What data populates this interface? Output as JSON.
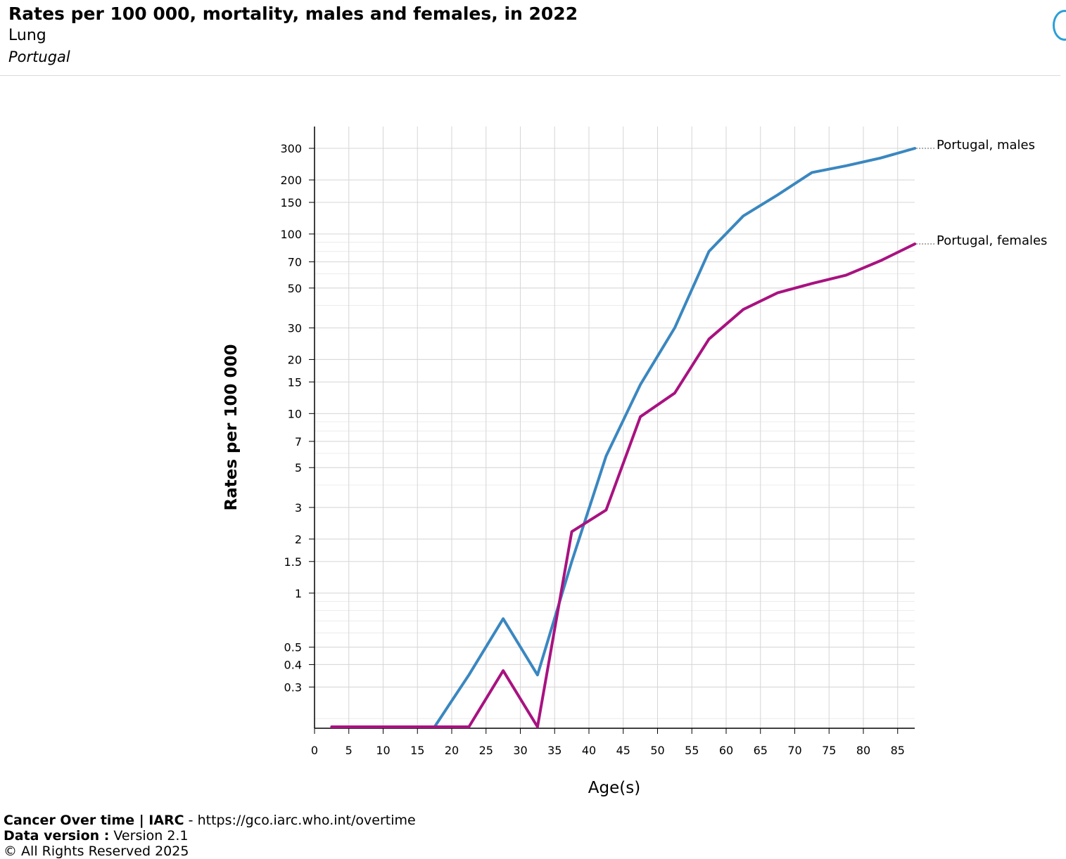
{
  "header": {
    "title": "Rates per 100 000, mortality, males and females, in 2022",
    "subtitle": "Lung",
    "country": "Portugal"
  },
  "footer": {
    "source_name": "Cancer Over time | IARC",
    "source_sep": " - ",
    "source_url": "https://gco.iarc.who.int/overtime",
    "version_label": "Data version :",
    "version_value": " Version 2.1",
    "rights": "© All Rights Reserved 2025"
  },
  "chart_data": {
    "type": "line",
    "xlabel": "Age(s)",
    "ylabel": "Rates per 100 000",
    "y_scale": "log",
    "xlim": [
      0,
      87.5
    ],
    "ylim": [
      0.18,
      400
    ],
    "x_ticks": [
      0,
      5,
      10,
      15,
      20,
      25,
      30,
      35,
      40,
      45,
      50,
      55,
      60,
      65,
      70,
      75,
      80,
      85
    ],
    "y_tick_labels": [
      "0.3",
      "0.4",
      "0.5",
      "1",
      "1.5",
      "2",
      "3",
      "5",
      "7",
      "10",
      "15",
      "20",
      "30",
      "50",
      "70",
      "100",
      "150",
      "200",
      "300"
    ],
    "grid": true,
    "series": [
      {
        "name": "Portugal, males",
        "color": "#3a87c0",
        "x": [
          2.5,
          7.5,
          12.5,
          17.5,
          22.5,
          27.5,
          32.5,
          37.5,
          42.5,
          47.5,
          52.5,
          57.5,
          62.5,
          67.5,
          72.5,
          77.5,
          82.5,
          87.5
        ],
        "y": [
          0.18,
          0.18,
          0.18,
          0.18,
          0.35,
          0.72,
          0.35,
          1.5,
          5.8,
          14.5,
          30,
          80,
          126,
          165,
          220,
          240,
          265,
          300
        ]
      },
      {
        "name": "Portugal, females",
        "color": "#a81280",
        "x": [
          2.5,
          7.5,
          12.5,
          17.5,
          22.5,
          27.5,
          32.5,
          37.5,
          42.5,
          47.5,
          52.5,
          57.5,
          62.5,
          67.5,
          72.5,
          77.5,
          82.5,
          87.5
        ],
        "y": [
          0.18,
          0.18,
          0.18,
          0.18,
          0.18,
          0.37,
          0.18,
          2.2,
          2.9,
          9.6,
          13,
          26,
          38,
          47,
          53,
          59,
          71,
          88
        ]
      }
    ]
  }
}
